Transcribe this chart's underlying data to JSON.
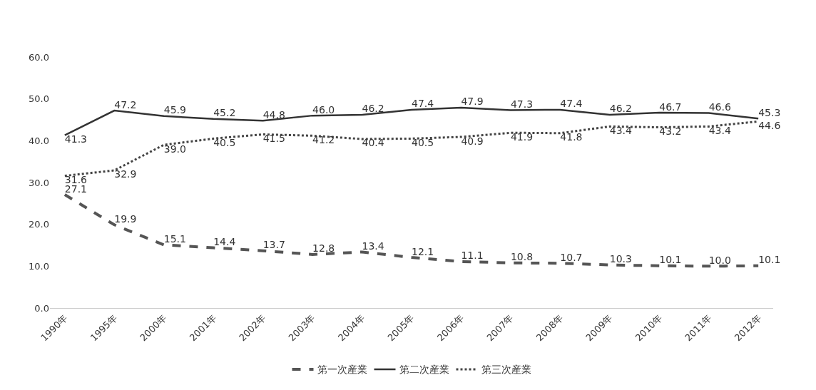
{
  "chart_data": {
    "type": "line",
    "categories": [
      "1990年",
      "1995年",
      "2000年",
      "2001年",
      "2002年",
      "2003年",
      "2004年",
      "2005年",
      "2006年",
      "2007年",
      "2008年",
      "2009年",
      "2010年",
      "2011年",
      "2012年"
    ],
    "series": [
      {
        "name": "第一次産業",
        "color": "#555555",
        "line_style": "dashed",
        "values": [
          27.1,
          19.9,
          15.1,
          14.4,
          13.7,
          12.8,
          13.4,
          12.1,
          11.1,
          10.8,
          10.7,
          10.3,
          10.1,
          10.0,
          10.1
        ],
        "value_labels": [
          "27.1",
          "19.9",
          "15.1",
          "14.4",
          "13.7",
          "12.8",
          "13.4",
          "12.1",
          "11.1",
          "10.8",
          "10.7",
          "10.3",
          "10.1",
          "10.0",
          "10.1"
        ]
      },
      {
        "name": "第二次産業",
        "color": "#333333",
        "line_style": "solid",
        "values": [
          41.3,
          47.2,
          45.9,
          45.2,
          44.8,
          46.0,
          46.2,
          47.4,
          47.9,
          47.3,
          47.4,
          46.2,
          46.7,
          46.6,
          45.3
        ],
        "value_labels": [
          "41.3",
          "47.2",
          "45.9",
          "45.2",
          "44.8",
          "46.0",
          "46.2",
          "47.4",
          "47.9",
          "47.3",
          "47.4",
          "46.2",
          "46.7",
          "46.6",
          "45.3"
        ]
      },
      {
        "name": "第三次産業",
        "color": "#444444",
        "line_style": "dotted",
        "values": [
          31.6,
          32.9,
          39.0,
          40.5,
          41.5,
          41.2,
          40.4,
          40.5,
          40.9,
          41.9,
          41.8,
          43.4,
          43.2,
          43.4,
          44.6
        ],
        "value_labels": [
          "31.6",
          "32.9",
          "39.0",
          "40.5",
          "41.5",
          "41.2",
          "40.4",
          "40.5",
          "40.9",
          "41.9",
          "41.8",
          "43.4",
          "43.2",
          "43.4",
          "44.6"
        ]
      }
    ],
    "ylim": [
      0,
      60
    ],
    "yticks": [
      {
        "value": 0,
        "label": "0.0"
      },
      {
        "value": 10,
        "label": "10.0"
      },
      {
        "value": 20,
        "label": "20.0"
      },
      {
        "value": 30,
        "label": "30.0"
      },
      {
        "value": 40,
        "label": "40.0"
      },
      {
        "value": 50,
        "label": "50.0"
      },
      {
        "value": 60,
        "label": "60.0"
      }
    ],
    "grid": false,
    "legend": "bottom",
    "marker": "none"
  }
}
